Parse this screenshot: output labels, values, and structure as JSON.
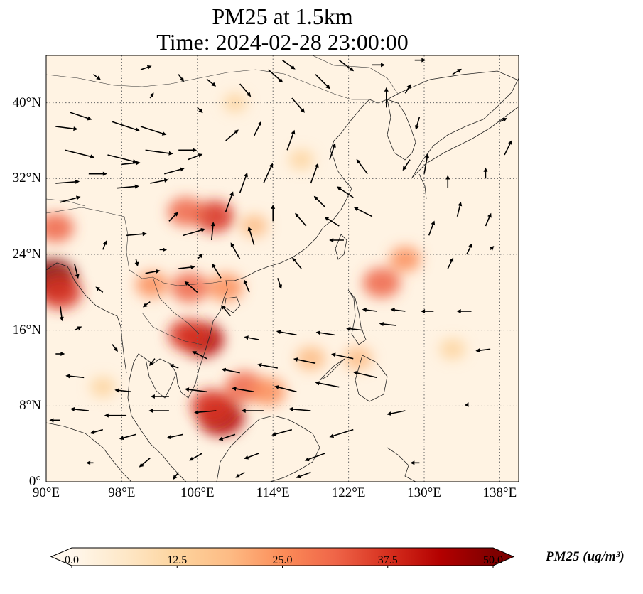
{
  "title": {
    "line1": "PM25 at 1.5km",
    "line2": "Time: 2024-02-28 23:00:00"
  },
  "map": {
    "extent_lon": [
      90,
      140
    ],
    "extent_lat": [
      0,
      45
    ],
    "lat_ticks": [
      {
        "value": 0,
        "label": "0°"
      },
      {
        "value": 8,
        "label": "8°N"
      },
      {
        "value": 16,
        "label": "16°N"
      },
      {
        "value": 24,
        "label": "24°N"
      },
      {
        "value": 32,
        "label": "32°N"
      },
      {
        "value": 40,
        "label": "40°N"
      }
    ],
    "lon_ticks": [
      {
        "value": 90,
        "label": "90°E"
      },
      {
        "value": 98,
        "label": "98°E"
      },
      {
        "value": 106,
        "label": "106°E"
      },
      {
        "value": 114,
        "label": "114°E"
      },
      {
        "value": 122,
        "label": "122°E"
      },
      {
        "value": 130,
        "label": "130°E"
      },
      {
        "value": 138,
        "label": "138°E"
      }
    ],
    "gridlines": "dotted",
    "background_color": "#fff3e3",
    "hotspots": [
      {
        "lon": 90.7,
        "lat": 21.5,
        "value": 48
      },
      {
        "lon": 91.5,
        "lat": 20.0,
        "value": 40
      },
      {
        "lon": 91.0,
        "lat": 26.8,
        "value": 30
      },
      {
        "lon": 106.5,
        "lat": 15.0,
        "value": 42
      },
      {
        "lon": 105.0,
        "lat": 15.5,
        "value": 35
      },
      {
        "lon": 108.5,
        "lat": 6.8,
        "value": 46
      },
      {
        "lon": 107.5,
        "lat": 8.0,
        "value": 38
      },
      {
        "lon": 111.0,
        "lat": 10.0,
        "value": 34
      },
      {
        "lon": 113.5,
        "lat": 9.5,
        "value": 28
      },
      {
        "lon": 107.8,
        "lat": 28.0,
        "value": 35
      },
      {
        "lon": 104.8,
        "lat": 28.5,
        "value": 30
      },
      {
        "lon": 105.2,
        "lat": 20.5,
        "value": 32
      },
      {
        "lon": 109.0,
        "lat": 20.5,
        "value": 28
      },
      {
        "lon": 101.2,
        "lat": 20.8,
        "value": 24
      },
      {
        "lon": 125.5,
        "lat": 21.0,
        "value": 32
      },
      {
        "lon": 128.0,
        "lat": 23.5,
        "value": 22
      },
      {
        "lon": 118.0,
        "lat": 13.0,
        "value": 20
      },
      {
        "lon": 123.0,
        "lat": 13.0,
        "value": 18
      },
      {
        "lon": 133.0,
        "lat": 14.0,
        "value": 14
      },
      {
        "lon": 112.0,
        "lat": 27.0,
        "value": 16
      },
      {
        "lon": 96.0,
        "lat": 10.0,
        "value": 13
      },
      {
        "lon": 110.0,
        "lat": 40.0,
        "value": 10
      },
      {
        "lon": 117.0,
        "lat": 34.0,
        "value": 12
      }
    ],
    "wind_vectors": [
      {
        "lon": 91.0,
        "lat": 37.5,
        "u": 2.4,
        "v": -0.3
      },
      {
        "lon": 92.5,
        "lat": 39.0,
        "u": 2.4,
        "v": -0.8
      },
      {
        "lon": 97.0,
        "lat": 38.0,
        "u": 3.0,
        "v": -1.0
      },
      {
        "lon": 100.0,
        "lat": 37.5,
        "u": 2.8,
        "v": -0.9
      },
      {
        "lon": 92.0,
        "lat": 35.0,
        "u": 3.2,
        "v": -0.8
      },
      {
        "lon": 96.5,
        "lat": 34.5,
        "u": 3.2,
        "v": -0.8
      },
      {
        "lon": 100.5,
        "lat": 35.0,
        "u": 3.0,
        "v": -0.4
      },
      {
        "lon": 104.0,
        "lat": 35.0,
        "u": 2.0,
        "v": 0.0
      },
      {
        "lon": 91.0,
        "lat": 31.5,
        "u": 2.6,
        "v": 0.2
      },
      {
        "lon": 94.5,
        "lat": 32.5,
        "u": 2.0,
        "v": 0.0
      },
      {
        "lon": 98.0,
        "lat": 33.5,
        "u": 2.0,
        "v": 0.2
      },
      {
        "lon": 102.5,
        "lat": 32.5,
        "u": 2.2,
        "v": 0.6
      },
      {
        "lon": 105.0,
        "lat": 34.0,
        "u": 1.6,
        "v": 0.6
      },
      {
        "lon": 91.5,
        "lat": 29.5,
        "u": 2.2,
        "v": 0.6
      },
      {
        "lon": 97.5,
        "lat": 31.0,
        "u": 2.4,
        "v": 0.2
      },
      {
        "lon": 101.0,
        "lat": 31.5,
        "u": 2.0,
        "v": 0.4
      },
      {
        "lon": 98.5,
        "lat": 26.0,
        "u": 2.2,
        "v": 0.2
      },
      {
        "lon": 104.5,
        "lat": 26.0,
        "u": 2.4,
        "v": 0.7
      },
      {
        "lon": 103.0,
        "lat": 27.5,
        "u": 1.0,
        "v": 1.0
      },
      {
        "lon": 91.0,
        "lat": 13.5,
        "u": 1.0,
        "v": 0.0
      },
      {
        "lon": 93.0,
        "lat": 16.0,
        "u": 0.8,
        "v": 0.4
      },
      {
        "lon": 91.5,
        "lat": 18.5,
        "u": 0.2,
        "v": -1.6
      },
      {
        "lon": 93.0,
        "lat": 23.0,
        "u": 0.4,
        "v": -1.6
      },
      {
        "lon": 100.5,
        "lat": 22.0,
        "u": 1.6,
        "v": 0.3
      },
      {
        "lon": 104.0,
        "lat": 22.5,
        "u": 1.8,
        "v": 0.2
      },
      {
        "lon": 96.0,
        "lat": 20.0,
        "u": -0.8,
        "v": 0.6
      },
      {
        "lon": 101.0,
        "lat": 19.0,
        "u": -0.8,
        "v": -0.6
      },
      {
        "lon": 106.0,
        "lat": 20.0,
        "u": -1.4,
        "v": 1.2
      },
      {
        "lon": 108.5,
        "lat": 21.5,
        "u": -1.0,
        "v": 1.6
      },
      {
        "lon": 110.5,
        "lat": 23.5,
        "u": -1.0,
        "v": 1.8
      },
      {
        "lon": 112.0,
        "lat": 25.0,
        "u": -0.6,
        "v": 2.0
      },
      {
        "lon": 107.5,
        "lat": 25.5,
        "u": 0.2,
        "v": 2.0
      },
      {
        "lon": 109.0,
        "lat": 28.5,
        "u": 0.8,
        "v": 2.2
      },
      {
        "lon": 110.5,
        "lat": 30.5,
        "u": 0.8,
        "v": 2.2
      },
      {
        "lon": 113.0,
        "lat": 31.5,
        "u": 1.0,
        "v": 2.2
      },
      {
        "lon": 115.5,
        "lat": 35.0,
        "u": 0.8,
        "v": 2.2
      },
      {
        "lon": 118.0,
        "lat": 31.5,
        "u": 0.8,
        "v": 2.2
      },
      {
        "lon": 120.0,
        "lat": 34.0,
        "u": 0.6,
        "v": 1.8
      },
      {
        "lon": 114.0,
        "lat": 27.5,
        "u": 0.0,
        "v": 1.8
      },
      {
        "lon": 117.5,
        "lat": 27.0,
        "u": -1.2,
        "v": 1.4
      },
      {
        "lon": 119.5,
        "lat": 29.0,
        "u": -1.2,
        "v": 1.2
      },
      {
        "lon": 121.0,
        "lat": 27.0,
        "u": -1.6,
        "v": 1.0
      },
      {
        "lon": 122.5,
        "lat": 30.0,
        "u": -1.8,
        "v": 1.2
      },
      {
        "lon": 124.0,
        "lat": 32.5,
        "u": -1.2,
        "v": 1.6
      },
      {
        "lon": 124.5,
        "lat": 28.0,
        "u": -2.0,
        "v": 1.0
      },
      {
        "lon": 121.5,
        "lat": 25.5,
        "u": -1.6,
        "v": 0.0
      },
      {
        "lon": 112.0,
        "lat": 36.5,
        "u": 0.8,
        "v": 1.6
      },
      {
        "lon": 109.0,
        "lat": 36.0,
        "u": 1.4,
        "v": 1.2
      },
      {
        "lon": 116.0,
        "lat": 40.5,
        "u": 1.4,
        "v": -1.6
      },
      {
        "lon": 118.5,
        "lat": 43.0,
        "u": 1.6,
        "v": -1.6
      },
      {
        "lon": 113.5,
        "lat": 43.5,
        "u": 1.6,
        "v": -1.4
      },
      {
        "lon": 110.5,
        "lat": 42.0,
        "u": 1.2,
        "v": -1.4
      },
      {
        "lon": 115.0,
        "lat": 44.5,
        "u": 1.4,
        "v": -1.0
      },
      {
        "lon": 121.0,
        "lat": 44.5,
        "u": 1.6,
        "v": -1.2
      },
      {
        "lon": 124.5,
        "lat": 44.0,
        "u": 1.4,
        "v": 0.0
      },
      {
        "lon": 126.0,
        "lat": 39.5,
        "u": 0.0,
        "v": 2.2
      },
      {
        "lon": 128.0,
        "lat": 41.0,
        "u": 0.6,
        "v": 1.0
      },
      {
        "lon": 129.5,
        "lat": 38.5,
        "u": -0.4,
        "v": -1.4
      },
      {
        "lon": 130.0,
        "lat": 32.5,
        "u": 0.4,
        "v": 2.2
      },
      {
        "lon": 128.5,
        "lat": 34.0,
        "u": -0.8,
        "v": -1.2
      },
      {
        "lon": 132.5,
        "lat": 31.0,
        "u": 0.0,
        "v": 1.4
      },
      {
        "lon": 136.5,
        "lat": 32.0,
        "u": 0.0,
        "v": 1.2
      },
      {
        "lon": 133.5,
        "lat": 28.0,
        "u": 0.4,
        "v": 1.6
      },
      {
        "lon": 136.5,
        "lat": 27.0,
        "u": 0.6,
        "v": 1.4
      },
      {
        "lon": 130.5,
        "lat": 26.0,
        "u": 0.6,
        "v": 1.6
      },
      {
        "lon": 134.5,
        "lat": 24.0,
        "u": 0.6,
        "v": 1.2
      },
      {
        "lon": 137.0,
        "lat": 24.5,
        "u": 0.4,
        "v": 0.4
      },
      {
        "lon": 132.5,
        "lat": 22.5,
        "u": 0.6,
        "v": 1.2
      },
      {
        "lon": 138.0,
        "lat": 38.0,
        "u": 0.8,
        "v": 0.4
      },
      {
        "lon": 138.5,
        "lat": 34.5,
        "u": 0.8,
        "v": 1.6
      },
      {
        "lon": 129.0,
        "lat": 44.5,
        "u": 1.2,
        "v": 0.0
      },
      {
        "lon": 133.0,
        "lat": 43.0,
        "u": 1.0,
        "v": 0.6
      },
      {
        "lon": 125.0,
        "lat": 18.0,
        "u": -1.6,
        "v": 0.2
      },
      {
        "lon": 128.0,
        "lat": 18.0,
        "u": -1.6,
        "v": 0.2
      },
      {
        "lon": 131.0,
        "lat": 18.0,
        "u": -1.4,
        "v": 0.0
      },
      {
        "lon": 135.0,
        "lat": 18.0,
        "u": -1.6,
        "v": 0.0
      },
      {
        "lon": 127.0,
        "lat": 16.5,
        "u": -1.8,
        "v": 0.2
      },
      {
        "lon": 123.5,
        "lat": 16.0,
        "u": -1.8,
        "v": 0.2
      },
      {
        "lon": 120.5,
        "lat": 15.5,
        "u": -2.0,
        "v": 0.3
      },
      {
        "lon": 116.5,
        "lat": 15.5,
        "u": -2.2,
        "v": 0.4
      },
      {
        "lon": 112.5,
        "lat": 15.0,
        "u": -1.6,
        "v": 0.3
      },
      {
        "lon": 137.0,
        "lat": 14.0,
        "u": -1.6,
        "v": -0.2
      },
      {
        "lon": 122.5,
        "lat": 13.0,
        "u": -2.4,
        "v": 0.5
      },
      {
        "lon": 118.5,
        "lat": 12.5,
        "u": -2.4,
        "v": 0.5
      },
      {
        "lon": 114.5,
        "lat": 12.0,
        "u": -2.2,
        "v": 0.4
      },
      {
        "lon": 110.5,
        "lat": 11.5,
        "u": -2.0,
        "v": 0.4
      },
      {
        "lon": 125.0,
        "lat": 11.0,
        "u": -2.6,
        "v": 0.6
      },
      {
        "lon": 121.0,
        "lat": 10.0,
        "u": -2.6,
        "v": 0.5
      },
      {
        "lon": 116.5,
        "lat": 9.5,
        "u": -2.4,
        "v": 0.6
      },
      {
        "lon": 112.0,
        "lat": 9.5,
        "u": -2.4,
        "v": 0.4
      },
      {
        "lon": 107.0,
        "lat": 9.5,
        "u": -2.4,
        "v": 0.3
      },
      {
        "lon": 103.0,
        "lat": 9.0,
        "u": -2.0,
        "v": 0.0
      },
      {
        "lon": 99.0,
        "lat": 9.5,
        "u": -1.8,
        "v": 0.2
      },
      {
        "lon": 94.0,
        "lat": 11.0,
        "u": -2.0,
        "v": 0.2
      },
      {
        "lon": 118.0,
        "lat": 7.5,
        "u": -2.4,
        "v": 0.2
      },
      {
        "lon": 113.0,
        "lat": 7.5,
        "u": -2.4,
        "v": 0.0
      },
      {
        "lon": 108.0,
        "lat": 7.5,
        "u": -2.4,
        "v": -0.2
      },
      {
        "lon": 103.0,
        "lat": 7.5,
        "u": -2.2,
        "v": 0.0
      },
      {
        "lon": 98.5,
        "lat": 7.0,
        "u": -2.4,
        "v": 0.0
      },
      {
        "lon": 94.5,
        "lat": 7.5,
        "u": -2.0,
        "v": 0.2
      },
      {
        "lon": 91.5,
        "lat": 6.5,
        "u": -1.2,
        "v": 0.0
      },
      {
        "lon": 128.0,
        "lat": 7.5,
        "u": -2.0,
        "v": -0.4
      },
      {
        "lon": 122.5,
        "lat": 5.5,
        "u": -2.6,
        "v": -0.8
      },
      {
        "lon": 116.0,
        "lat": 5.5,
        "u": -2.2,
        "v": -0.6
      },
      {
        "lon": 110.0,
        "lat": 5.0,
        "u": -1.8,
        "v": -0.6
      },
      {
        "lon": 104.5,
        "lat": 5.0,
        "u": -1.8,
        "v": -0.4
      },
      {
        "lon": 99.5,
        "lat": 5.0,
        "u": -1.8,
        "v": -0.5
      },
      {
        "lon": 96.0,
        "lat": 5.5,
        "u": -1.4,
        "v": -0.4
      },
      {
        "lon": 119.5,
        "lat": 3.0,
        "u": -2.2,
        "v": -0.8
      },
      {
        "lon": 112.5,
        "lat": 3.0,
        "u": -1.6,
        "v": -0.6
      },
      {
        "lon": 106.5,
        "lat": 3.0,
        "u": -1.4,
        "v": -0.8
      },
      {
        "lon": 101.0,
        "lat": 2.5,
        "u": -1.2,
        "v": -1.0
      },
      {
        "lon": 95.0,
        "lat": 2.0,
        "u": -0.8,
        "v": 0.0
      },
      {
        "lon": 111.0,
        "lat": 1.0,
        "u": -1.0,
        "v": -0.6
      },
      {
        "lon": 118.0,
        "lat": 1.0,
        "u": -1.6,
        "v": -0.6
      },
      {
        "lon": 104.0,
        "lat": 1.0,
        "u": -0.6,
        "v": -0.8
      },
      {
        "lon": 129.5,
        "lat": 2.0,
        "u": -1.0,
        "v": 0.0
      },
      {
        "lon": 134.5,
        "lat": 8.0,
        "u": 0.2,
        "v": 0.4
      },
      {
        "lon": 97.0,
        "lat": 14.5,
        "u": 0.6,
        "v": -0.8
      },
      {
        "lon": 101.5,
        "lat": 13.0,
        "u": -0.6,
        "v": -0.8
      },
      {
        "lon": 104.0,
        "lat": 12.0,
        "u": -1.0,
        "v": 0.4
      },
      {
        "lon": 107.0,
        "lat": 13.0,
        "u": -1.6,
        "v": 0.8
      },
      {
        "lon": 109.5,
        "lat": 17.5,
        "u": -1.0,
        "v": 1.2
      },
      {
        "lon": 96.0,
        "lat": 24.5,
        "u": 0.4,
        "v": 1.0
      },
      {
        "lon": 99.5,
        "lat": 23.5,
        "u": 0.2,
        "v": -0.8
      },
      {
        "lon": 102.0,
        "lat": 24.5,
        "u": 0.8,
        "v": 0.0
      },
      {
        "lon": 106.0,
        "lat": 23.5,
        "u": 0.6,
        "v": 0.6
      },
      {
        "lon": 114.5,
        "lat": 21.5,
        "u": 0.4,
        "v": -1.2
      },
      {
        "lon": 117.0,
        "lat": 22.5,
        "u": -1.0,
        "v": 1.2
      },
      {
        "lon": 111.5,
        "lat": 20.0,
        "u": -0.6,
        "v": 1.4
      },
      {
        "lon": 100.0,
        "lat": 43.5,
        "u": 1.2,
        "v": 0.4
      },
      {
        "lon": 104.0,
        "lat": 43.0,
        "u": 0.6,
        "v": -0.8
      },
      {
        "lon": 107.0,
        "lat": 42.5,
        "u": 1.0,
        "v": -0.8
      },
      {
        "lon": 95.0,
        "lat": 43.0,
        "u": 0.8,
        "v": -0.6
      },
      {
        "lon": 106.0,
        "lat": 39.5,
        "u": 0.6,
        "v": -0.6
      },
      {
        "lon": 101.0,
        "lat": 40.5,
        "u": 0.4,
        "v": 0.6
      }
    ]
  },
  "colorbar": {
    "label": "PM25 (ug/m³)",
    "ticks": [
      "0.0",
      "12.5",
      "25.0",
      "37.5",
      "50.0"
    ],
    "min": 0,
    "max": 50,
    "colormap": [
      "#fff7ec",
      "#fee8c8",
      "#fdd49e",
      "#fdbb84",
      "#fc8d59",
      "#ef6548",
      "#d7301f",
      "#b30000",
      "#7f0000"
    ]
  }
}
